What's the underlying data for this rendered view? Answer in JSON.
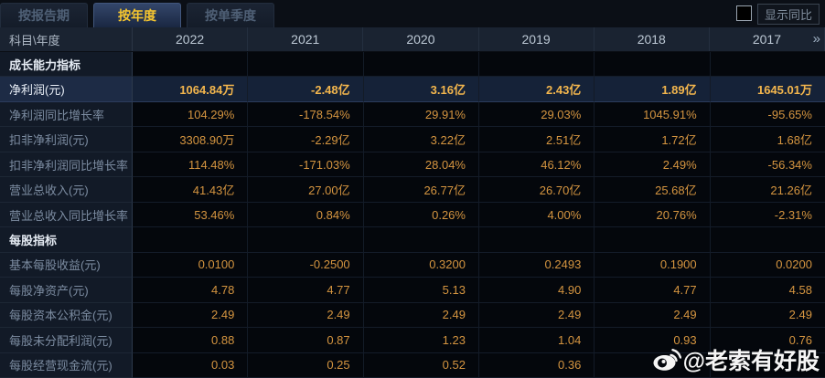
{
  "tabs": [
    {
      "label": "按报告期",
      "active": false
    },
    {
      "label": "按年度",
      "active": true
    },
    {
      "label": "按单季度",
      "active": false
    }
  ],
  "controls": {
    "show_yoy_label": "显示同比",
    "checkbox_checked": false
  },
  "table": {
    "corner_label": "科目\\年度",
    "years": [
      "2022",
      "2021",
      "2020",
      "2019",
      "2018",
      "2017"
    ],
    "more_icon": "»",
    "rows": [
      {
        "type": "section",
        "label": "成长能力指标",
        "values": [
          "",
          "",
          "",
          "",
          "",
          ""
        ]
      },
      {
        "type": "data",
        "highlight": true,
        "label": "净利润(元)",
        "values": [
          "1064.84万",
          "-2.48亿",
          "3.16亿",
          "2.43亿",
          "1.89亿",
          "1645.01万"
        ]
      },
      {
        "type": "data",
        "label": "净利润同比增长率",
        "values": [
          "104.29%",
          "-178.54%",
          "29.91%",
          "29.03%",
          "1045.91%",
          "-95.65%"
        ]
      },
      {
        "type": "data",
        "label": "扣非净利润(元)",
        "values": [
          "3308.90万",
          "-2.29亿",
          "3.22亿",
          "2.51亿",
          "1.72亿",
          "1.68亿"
        ]
      },
      {
        "type": "data",
        "label": "扣非净利润同比增长率",
        "values": [
          "114.48%",
          "-171.03%",
          "28.04%",
          "46.12%",
          "2.49%",
          "-56.34%"
        ]
      },
      {
        "type": "data",
        "label": "营业总收入(元)",
        "values": [
          "41.43亿",
          "27.00亿",
          "26.77亿",
          "26.70亿",
          "25.68亿",
          "21.26亿"
        ]
      },
      {
        "type": "data",
        "label": "营业总收入同比增长率",
        "values": [
          "53.46%",
          "0.84%",
          "0.26%",
          "4.00%",
          "20.76%",
          "-2.31%"
        ]
      },
      {
        "type": "section",
        "label": "每股指标",
        "values": [
          "",
          "",
          "",
          "",
          "",
          ""
        ]
      },
      {
        "type": "data",
        "label": "基本每股收益(元)",
        "values": [
          "0.0100",
          "-0.2500",
          "0.3200",
          "0.2493",
          "0.1900",
          "0.0200"
        ]
      },
      {
        "type": "data",
        "label": "每股净资产(元)",
        "values": [
          "4.78",
          "4.77",
          "5.13",
          "4.90",
          "4.77",
          "4.58"
        ]
      },
      {
        "type": "data",
        "label": "每股资本公积金(元)",
        "values": [
          "2.49",
          "2.49",
          "2.49",
          "2.49",
          "2.49",
          "2.49"
        ]
      },
      {
        "type": "data",
        "label": "每股未分配利润(元)",
        "values": [
          "0.88",
          "0.87",
          "1.23",
          "1.04",
          "0.93",
          "0.76"
        ]
      },
      {
        "type": "data",
        "label": "每股经营现金流(元)",
        "values": [
          "0.03",
          "0.25",
          "0.52",
          "0.36",
          "",
          ""
        ]
      }
    ]
  },
  "watermark": {
    "text": "@老索有好股",
    "icon": "weibo-icon"
  },
  "colors": {
    "value_orange": "#d59540",
    "highlight_value": "#f3b64d",
    "active_tab_text": "#f6c62f",
    "highlight_row_bg": "#1d2b45",
    "header_bg": "#1a2331"
  }
}
